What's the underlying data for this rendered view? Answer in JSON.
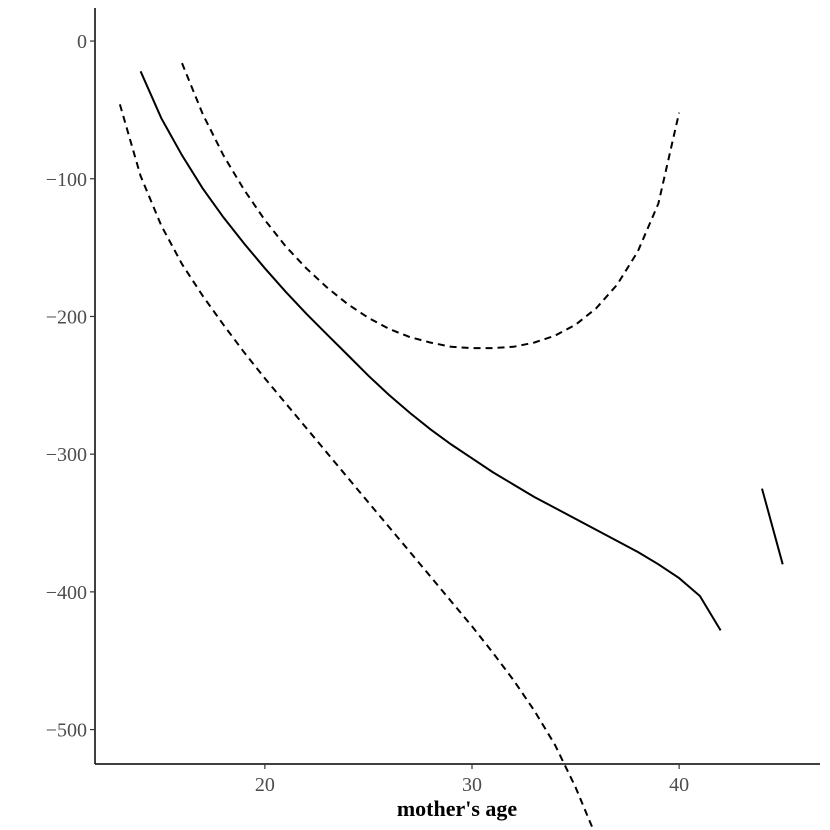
{
  "chart_data": {
    "type": "line",
    "title": "",
    "xlabel": "mother's age",
    "ylabel": "",
    "xlim": [
      11.8,
      46.8
    ],
    "ylim": [
      -525,
      24
    ],
    "x_ticks": [
      20,
      30,
      40
    ],
    "y_ticks": [
      0,
      -100,
      -200,
      -300,
      -400,
      -500
    ],
    "grid": false,
    "series": [
      {
        "style": "solid",
        "segments": [
          [
            [
              14,
              -22
            ],
            [
              15,
              -56
            ],
            [
              16,
              -83
            ],
            [
              17,
              -107
            ],
            [
              18,
              -128
            ],
            [
              19,
              -147
            ],
            [
              20,
              -165
            ],
            [
              21,
              -182
            ],
            [
              22,
              -198
            ],
            [
              23,
              -213
            ],
            [
              24,
              -228
            ],
            [
              25,
              -243
            ],
            [
              26,
              -257
            ],
            [
              27,
              -270
            ],
            [
              28,
              -282
            ],
            [
              29,
              -293
            ],
            [
              30,
              -303
            ],
            [
              31,
              -313
            ],
            [
              32,
              -322
            ],
            [
              33,
              -331
            ],
            [
              34,
              -339
            ],
            [
              35,
              -347
            ],
            [
              36,
              -355
            ],
            [
              37,
              -363
            ],
            [
              38,
              -371
            ],
            [
              39,
              -380
            ],
            [
              40,
              -390
            ],
            [
              41,
              -403
            ],
            [
              42,
              -428
            ]
          ],
          [
            [
              44,
              -325
            ],
            [
              45,
              -380
            ]
          ]
        ]
      },
      {
        "style": "dashed",
        "segments": [
          [
            [
              13,
              -46
            ],
            [
              14,
              -98
            ],
            [
              15,
              -134
            ],
            [
              16,
              -162
            ],
            [
              17,
              -185
            ],
            [
              18,
              -206
            ],
            [
              19,
              -226
            ],
            [
              20,
              -245
            ],
            [
              21,
              -263
            ],
            [
              22,
              -281
            ],
            [
              23,
              -299
            ],
            [
              24,
              -317
            ],
            [
              25,
              -335
            ],
            [
              26,
              -353
            ],
            [
              27,
              -371
            ],
            [
              28,
              -389
            ],
            [
              29,
              -407
            ],
            [
              30,
              -425
            ],
            [
              31,
              -444
            ],
            [
              32,
              -464
            ],
            [
              33,
              -486
            ],
            [
              34,
              -511
            ],
            [
              35,
              -542
            ],
            [
              36,
              -578
            ]
          ]
        ]
      },
      {
        "style": "dashed",
        "segments": [
          [
            [
              16,
              -16
            ],
            [
              17,
              -53
            ],
            [
              18,
              -83
            ],
            [
              19,
              -108
            ],
            [
              20,
              -130
            ],
            [
              21,
              -149
            ],
            [
              22,
              -165
            ],
            [
              23,
              -179
            ],
            [
              24,
              -191
            ],
            [
              25,
              -201
            ],
            [
              26,
              -209
            ],
            [
              27,
              -215
            ],
            [
              28,
              -219
            ],
            [
              29,
              -222
            ],
            [
              30,
              -223
            ],
            [
              31,
              -223
            ],
            [
              32,
              -222
            ],
            [
              33,
              -219
            ],
            [
              34,
              -214
            ],
            [
              35,
              -206
            ],
            [
              36,
              -194
            ],
            [
              37,
              -177
            ],
            [
              38,
              -153
            ],
            [
              39,
              -118
            ],
            [
              40,
              -52
            ]
          ]
        ]
      }
    ]
  }
}
